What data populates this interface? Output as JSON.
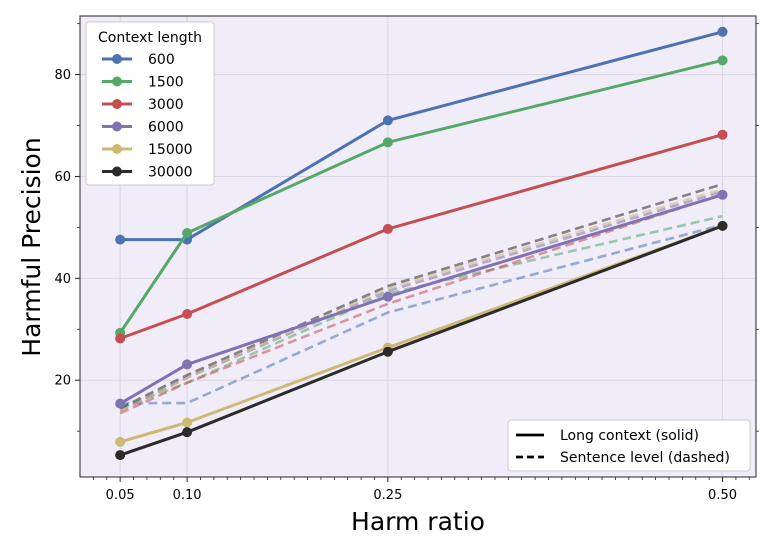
{
  "chart_data": {
    "type": "line",
    "title": "",
    "xlabel": "Harm ratio",
    "ylabel": "Harmful Precision",
    "x": [
      0.05,
      0.1,
      0.25,
      0.5
    ],
    "x_tick_labels": [
      "0.05",
      "0.10",
      "0.25",
      "0.50"
    ],
    "y_ticks": [
      20,
      40,
      60,
      80
    ],
    "xlim": [
      0.02,
      0.525
    ],
    "ylim": [
      1,
      91.5
    ],
    "grid": true,
    "legend_title": "Context length",
    "legend_position": "top-left",
    "style_legend_position": "bottom-right",
    "style_legend": [
      {
        "label": "Long context (solid)",
        "dash": "solid"
      },
      {
        "label": "Sentence level (dashed)",
        "dash": "dashed"
      }
    ],
    "series": [
      {
        "name": "600",
        "color": "#4c72b0",
        "solid": [
          47.6,
          47.6,
          71.0,
          88.4
        ],
        "dashed": [
          15.5,
          15.5,
          33.3,
          50.5
        ]
      },
      {
        "name": "1500",
        "color": "#55a868",
        "solid": [
          29.3,
          48.9,
          66.7,
          82.8
        ],
        "dashed": [
          14.5,
          19.5,
          37.0,
          52.2
        ]
      },
      {
        "name": "3000",
        "color": "#c44e52",
        "solid": [
          28.2,
          33.0,
          49.7,
          68.2
        ],
        "dashed": [
          13.5,
          19.5,
          35.0,
          56.5
        ]
      },
      {
        "name": "6000",
        "color": "#8172b2",
        "solid": [
          15.4,
          23.1,
          36.4,
          56.4
        ],
        "dashed": [
          14.0,
          20.5,
          37.5,
          57.0
        ]
      },
      {
        "name": "15000",
        "color": "#ccb974",
        "solid": [
          7.9,
          11.7,
          26.4,
          50.3
        ],
        "dashed": [
          14.0,
          20.5,
          38.0,
          57.5
        ]
      },
      {
        "name": "30000",
        "color": "#2b2b2b",
        "solid": [
          5.3,
          9.8,
          25.6,
          50.3
        ],
        "dashed": [
          14.5,
          21.0,
          38.5,
          58.5
        ]
      }
    ]
  }
}
